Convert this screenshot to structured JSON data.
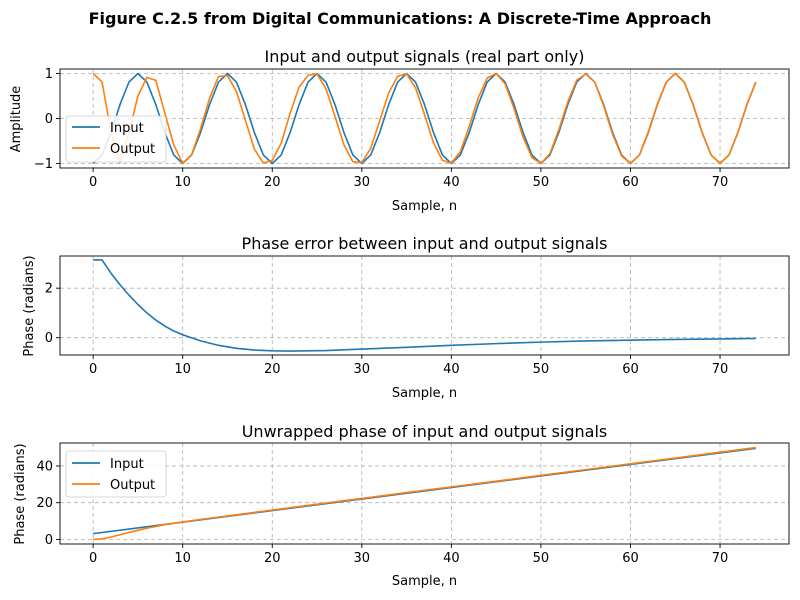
{
  "figure": {
    "suptitle": "Figure C.2.5 from Digital Communications: A Discrete-Time Approach"
  },
  "colors": {
    "input": "#1f77b4",
    "output": "#ff7f0e",
    "grid": "#b0b0b0",
    "frame": "#000000"
  },
  "chart_data": [
    {
      "type": "line",
      "title": "Input and output signals (real part only)",
      "xlabel": "Sample, n",
      "ylabel": "Amplitude",
      "xlim": [
        -3.7,
        77.7
      ],
      "ylim": [
        -1.1,
        1.1
      ],
      "xticks": [
        0,
        10,
        20,
        30,
        40,
        50,
        60,
        70
      ],
      "yticks": [
        -1,
        0,
        1
      ],
      "grid": true,
      "legend": {
        "position": "lower-left",
        "entries": [
          "Input",
          "Output"
        ]
      },
      "series": [
        {
          "name": "Input",
          "color": "#1f77b4",
          "x": [
            0,
            1,
            2,
            3,
            4,
            5,
            6,
            7,
            8,
            9,
            10,
            11,
            12,
            13,
            14,
            15,
            16,
            17,
            18,
            19,
            20,
            21,
            22,
            23,
            24,
            25,
            26,
            27,
            28,
            29,
            30,
            31,
            32,
            33,
            34,
            35,
            36,
            37,
            38,
            39,
            40,
            41,
            42,
            43,
            44,
            45,
            46,
            47,
            48,
            49,
            50,
            51,
            52,
            53,
            54,
            55,
            56,
            57,
            58,
            59,
            60,
            61,
            62,
            63,
            64,
            65,
            66,
            67,
            68,
            69,
            70,
            71,
            72,
            73,
            74
          ],
          "y": [
            -1.0,
            -0.809,
            -0.309,
            0.309,
            0.809,
            1.0,
            0.809,
            0.309,
            -0.309,
            -0.809,
            -1.0,
            -0.809,
            -0.309,
            0.309,
            0.809,
            1.0,
            0.809,
            0.309,
            -0.309,
            -0.809,
            -1.0,
            -0.809,
            -0.309,
            0.309,
            0.809,
            1.0,
            0.809,
            0.309,
            -0.309,
            -0.809,
            -1.0,
            -0.809,
            -0.309,
            0.309,
            0.809,
            1.0,
            0.809,
            0.309,
            -0.309,
            -0.809,
            -1.0,
            -0.809,
            -0.309,
            0.309,
            0.809,
            1.0,
            0.809,
            0.309,
            -0.309,
            -0.809,
            -1.0,
            -0.809,
            -0.309,
            0.309,
            0.809,
            1.0,
            0.809,
            0.309,
            -0.309,
            -0.809,
            -1.0,
            -0.809,
            -0.309,
            0.309,
            0.809,
            1.0,
            0.809,
            0.309,
            -0.309,
            -0.809,
            -1.0,
            -0.809,
            -0.309,
            0.309,
            0.809
          ]
        },
        {
          "name": "Output",
          "color": "#ff7f0e",
          "x": [
            0,
            1,
            2,
            3,
            4,
            5,
            6,
            7,
            8,
            9,
            10,
            11,
            12,
            13,
            14,
            15,
            16,
            17,
            18,
            19,
            20,
            21,
            22,
            23,
            24,
            25,
            26,
            27,
            28,
            29,
            30,
            31,
            32,
            33,
            34,
            35,
            36,
            37,
            38,
            39,
            40,
            41,
            42,
            43,
            44,
            45,
            46,
            47,
            48,
            49,
            50,
            51,
            52,
            53,
            54,
            55,
            56,
            57,
            58,
            59,
            60,
            61,
            62,
            63,
            64,
            65,
            66,
            67,
            68,
            69,
            70,
            71,
            72,
            73,
            74
          ],
          "y": [
            1.0,
            0.809,
            -0.309,
            -0.978,
            -0.309,
            0.5,
            0.914,
            0.848,
            0.123,
            -0.588,
            -0.995,
            -0.802,
            -0.225,
            0.454,
            0.934,
            0.951,
            0.6,
            -0.037,
            -0.68,
            -0.99,
            -0.93,
            -0.55,
            0.12,
            0.7,
            0.96,
            0.99,
            0.66,
            0.05,
            -0.58,
            -0.96,
            -0.98,
            -0.66,
            -0.05,
            0.57,
            0.94,
            0.99,
            0.68,
            0.09,
            -0.54,
            -0.93,
            -0.99,
            -0.74,
            -0.17,
            0.46,
            0.9,
            1.0,
            0.77,
            0.22,
            -0.41,
            -0.87,
            -1.0,
            -0.78,
            -0.25,
            0.37,
            0.85,
            0.99,
            0.81,
            0.28,
            -0.35,
            -0.83,
            -1.0,
            -0.81,
            -0.29,
            0.32,
            0.81,
            1.0,
            0.81,
            0.3,
            -0.32,
            -0.81,
            -1.0,
            -0.81,
            -0.31,
            0.31,
            0.81
          ]
        }
      ]
    },
    {
      "type": "line",
      "title": "Phase error between input and output signals",
      "xlabel": "Sample, n",
      "ylabel": "Phase (radians)",
      "xlim": [
        -3.7,
        77.7
      ],
      "ylim": [
        -0.7,
        3.3
      ],
      "xticks": [
        0,
        10,
        20,
        30,
        40,
        50,
        60,
        70
      ],
      "yticks": [
        0,
        2
      ],
      "grid": true,
      "series": [
        {
          "name": "Phase error",
          "color": "#1f77b4",
          "x": [
            0,
            1,
            2,
            3,
            4,
            5,
            6,
            7,
            8,
            9,
            10,
            12,
            14,
            16,
            18,
            20,
            22,
            24,
            26,
            28,
            30,
            35,
            40,
            45,
            50,
            55,
            60,
            65,
            70,
            74
          ],
          "y": [
            3.14,
            3.14,
            2.6,
            2.14,
            1.72,
            1.34,
            1.0,
            0.71,
            0.47,
            0.27,
            0.12,
            -0.13,
            -0.31,
            -0.43,
            -0.5,
            -0.53,
            -0.54,
            -0.53,
            -0.52,
            -0.49,
            -0.46,
            -0.39,
            -0.31,
            -0.24,
            -0.18,
            -0.13,
            -0.1,
            -0.07,
            -0.05,
            -0.03
          ]
        }
      ]
    },
    {
      "type": "line",
      "title": "Unwrapped phase of input and output signals",
      "xlabel": "Sample, n",
      "ylabel": "Phase (radians)",
      "xlim": [
        -3.7,
        77.7
      ],
      "ylim": [
        -2.5,
        52.5
      ],
      "xticks": [
        0,
        10,
        20,
        30,
        40,
        50,
        60,
        70
      ],
      "yticks": [
        0,
        20,
        40
      ],
      "grid": true,
      "legend": {
        "position": "upper-left",
        "entries": [
          "Input",
          "Output"
        ]
      },
      "series": [
        {
          "name": "Input",
          "color": "#1f77b4",
          "x": [
            0,
            74
          ],
          "y": [
            3.14,
            49.63
          ]
        },
        {
          "name": "Output",
          "color": "#ff7f0e",
          "x": [
            0,
            1,
            2,
            4,
            6,
            8,
            10,
            12,
            15,
            20,
            25,
            30,
            35,
            40,
            45,
            50,
            55,
            60,
            65,
            70,
            74
          ],
          "y": [
            0.0,
            0.3,
            1.3,
            3.8,
            6.1,
            8.0,
            9.5,
            10.9,
            12.8,
            16.0,
            19.2,
            22.3,
            25.5,
            28.6,
            31.7,
            34.9,
            38.0,
            41.2,
            44.3,
            47.5,
            50.0
          ]
        }
      ]
    }
  ]
}
